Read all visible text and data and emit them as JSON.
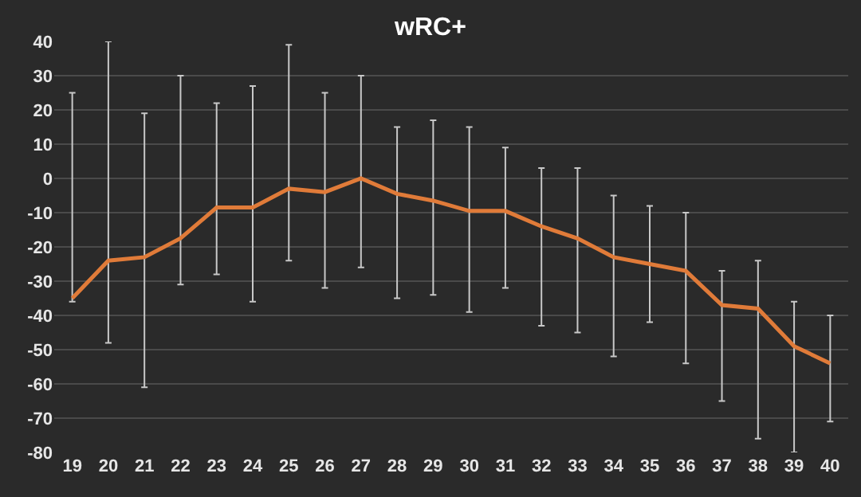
{
  "chart_data": {
    "type": "line",
    "title": "wRC+",
    "categories": [
      "19",
      "20",
      "21",
      "22",
      "23",
      "24",
      "25",
      "26",
      "27",
      "28",
      "29",
      "30",
      "31",
      "32",
      "33",
      "34",
      "35",
      "36",
      "37",
      "38",
      "39",
      "40"
    ],
    "series": [
      {
        "color": "#e07b39",
        "values": [
          -35,
          -24,
          -23,
          -17.5,
          -8.5,
          -8.5,
          -3,
          -4,
          0,
          -4.5,
          -6.5,
          -9.5,
          -9.5,
          -14,
          -17.5,
          -23,
          -25,
          -27,
          -37,
          -38,
          -49,
          -54
        ],
        "errors": [
          [
            -36,
            25
          ],
          [
            -48,
            40
          ],
          [
            -61,
            19
          ],
          [
            -31,
            30
          ],
          [
            -28,
            22
          ],
          [
            -36,
            27
          ],
          [
            -24,
            39
          ],
          [
            -32,
            25
          ],
          [
            -26,
            30
          ],
          [
            -35,
            15
          ],
          [
            -34,
            17
          ],
          [
            -39,
            15
          ],
          [
            -32,
            9
          ],
          [
            -43,
            3
          ],
          [
            -45,
            3
          ],
          [
            -52,
            -5
          ],
          [
            -42,
            -8
          ],
          [
            -54,
            -10
          ],
          [
            -65,
            -27
          ],
          [
            -76,
            -24
          ],
          [
            -80,
            -36
          ],
          [
            -71,
            -40
          ]
        ]
      }
    ],
    "ylim": [
      -80,
      40
    ],
    "yticks": [
      -80,
      -70,
      -60,
      -50,
      -40,
      -30,
      -20,
      -10,
      0,
      10,
      20,
      30,
      40
    ],
    "grid": "y",
    "marker": "none",
    "line_style": "solid"
  }
}
